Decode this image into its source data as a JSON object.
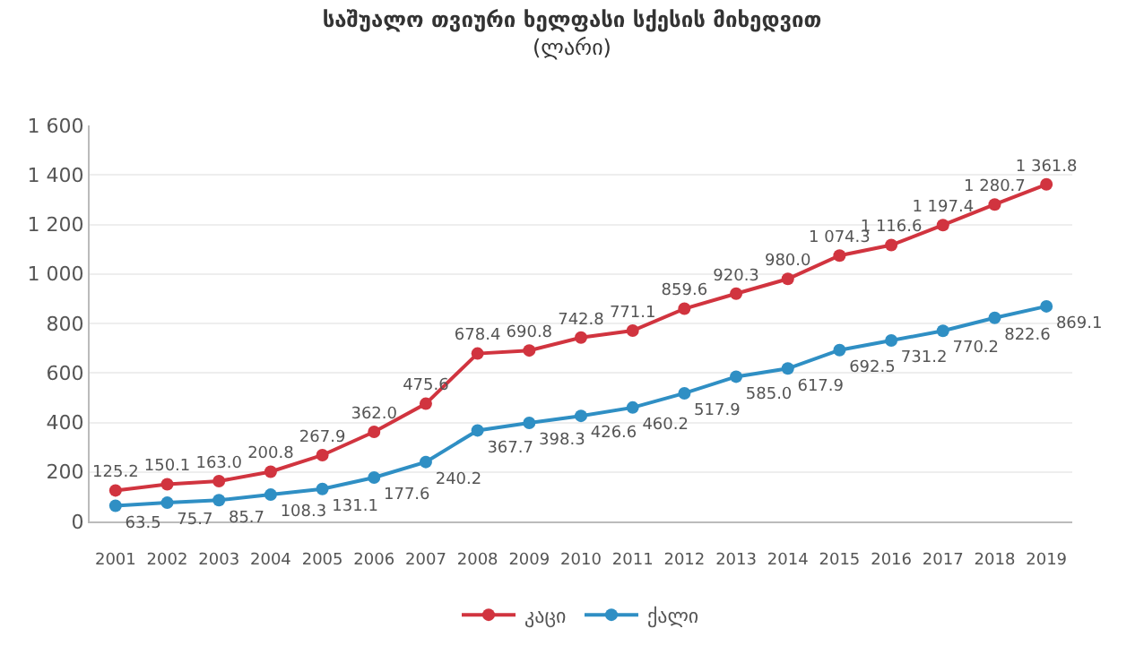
{
  "chart_data": {
    "type": "line",
    "title": "საშუალო თვიური ხელფასი სქესის მიხედვით",
    "subtitle": "(ლარი)",
    "categories": [
      "2001",
      "2002",
      "2003",
      "2004",
      "2005",
      "2006",
      "2007",
      "2008",
      "2009",
      "2010",
      "2011",
      "2012",
      "2013",
      "2014",
      "2015",
      "2016",
      "2017",
      "2018",
      "2019"
    ],
    "series": [
      {
        "name": "კაცი",
        "color": "#d1343f",
        "values": [
          125.2,
          150.1,
          163.0,
          200.8,
          267.9,
          362.0,
          475.6,
          678.4,
          690.8,
          742.8,
          771.1,
          859.6,
          920.3,
          980.0,
          1074.3,
          1116.6,
          1197.4,
          1280.7,
          1361.8
        ],
        "value_labels": [
          "125.2",
          "150.1",
          "163.0",
          "200.8",
          "267.9",
          "362.0",
          "475.6",
          "678.4",
          "690.8",
          "742.8",
          "771.1",
          "859.6",
          "920.3",
          "980.0",
          "1 074.3",
          "1 116.6",
          "1 197.4",
          "1 280.7",
          "1 361.8"
        ]
      },
      {
        "name": "ქალი",
        "color": "#2f8fc4",
        "values": [
          63.5,
          75.7,
          85.7,
          108.3,
          131.1,
          177.6,
          240.2,
          367.7,
          398.3,
          426.6,
          460.2,
          517.9,
          585.0,
          617.9,
          692.5,
          731.2,
          770.2,
          822.6,
          869.1
        ],
        "value_labels": [
          "63.5",
          "75.7",
          "85.7",
          "108.3",
          "131.1",
          "177.6",
          "240.2",
          "367.7",
          "398.3",
          "426.6",
          "460.2",
          "517.9",
          "585.0",
          "617.9",
          "692.5",
          "731.2",
          "770.2",
          "822.6",
          "869.1"
        ]
      }
    ],
    "ylim": [
      0,
      1600
    ],
    "yticks": [
      0,
      {
        "value": 200,
        "label": "200"
      },
      {
        "value": 400,
        "label": "400"
      },
      {
        "value": 600,
        "label": "600"
      },
      {
        "value": 800,
        "label": "800"
      },
      {
        "value": 1000,
        "label": "1 000"
      },
      {
        "value": 1200,
        "label": "1 200"
      },
      {
        "value": 1400,
        "label": "1 400"
      },
      {
        "value": 1600,
        "label": "1 600"
      }
    ],
    "grid": "y",
    "legend": "bottom",
    "marker": "circle",
    "line_style": "solid"
  }
}
